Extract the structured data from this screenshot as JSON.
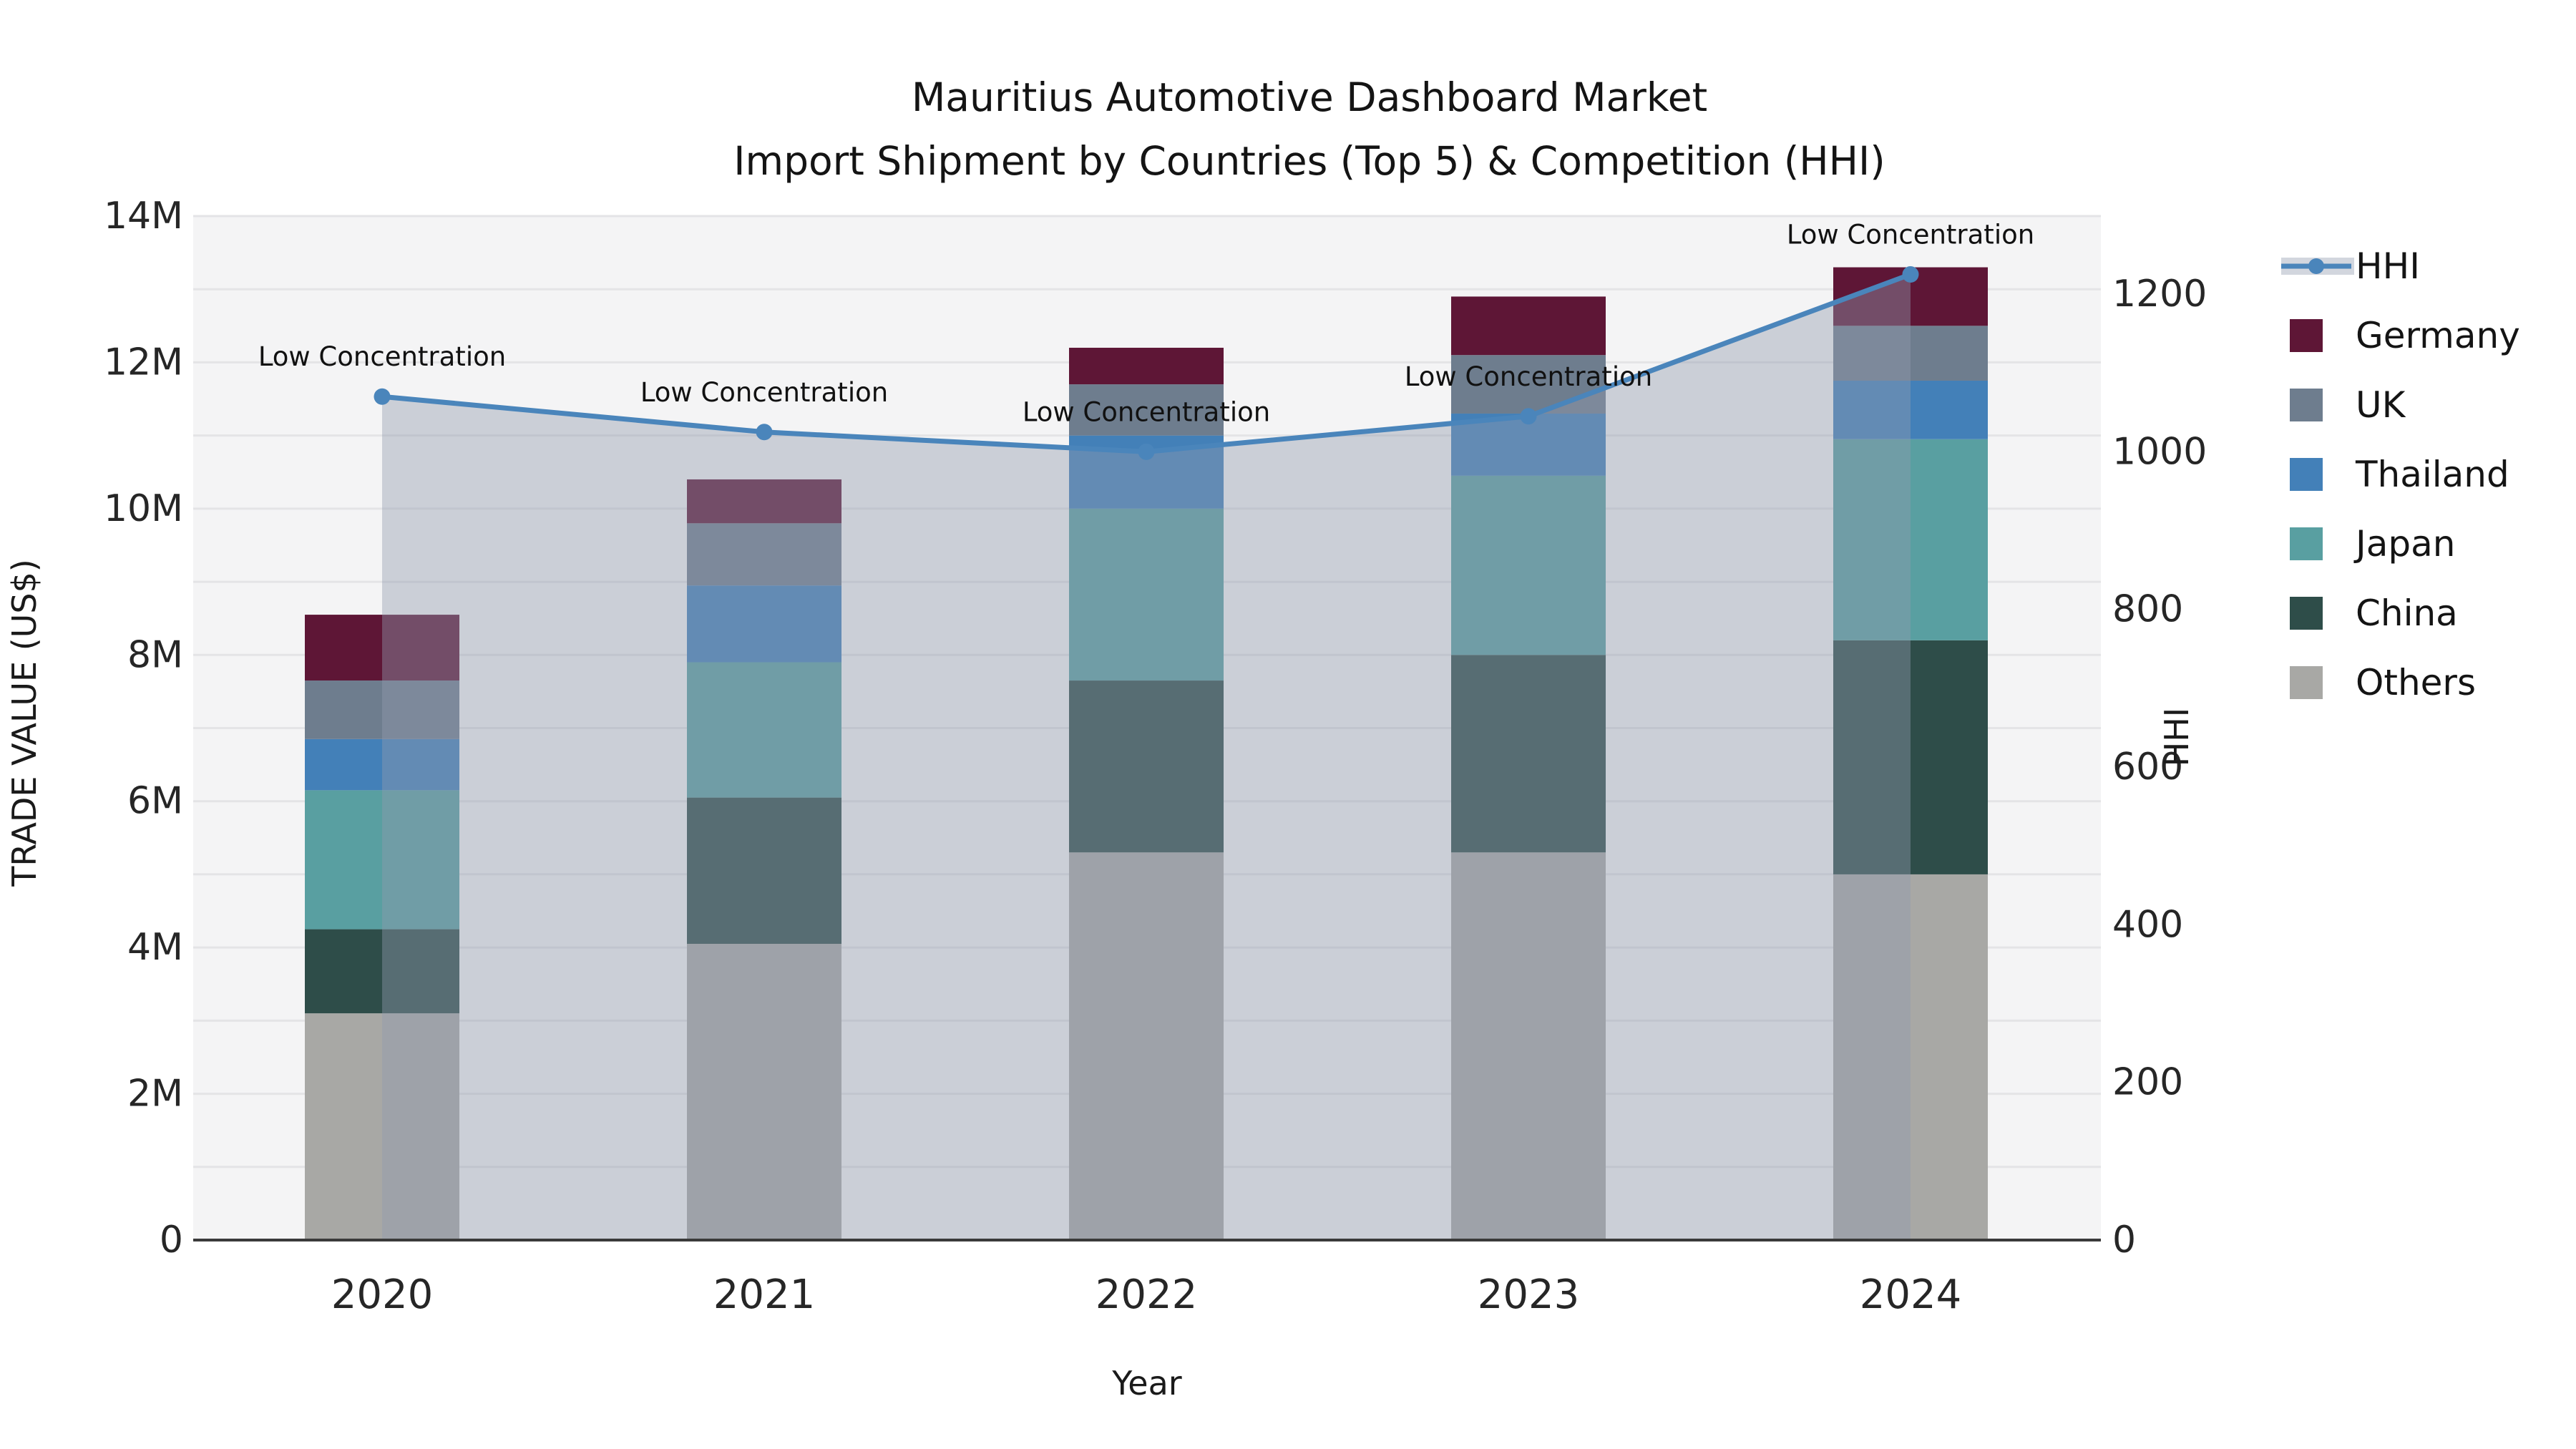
{
  "title": {
    "line1": "Mauritius Automotive Dashboard Market",
    "line2": "Import Shipment by Countries (Top 5) & Competition (HHI)"
  },
  "axes": {
    "x_label": "Year",
    "y_left_label": "TRADE VALUE (US$)",
    "y_right_label": "HHI",
    "y_left_ticks": [
      {
        "label": "0",
        "value": 0
      },
      {
        "label": "2M",
        "value": 2
      },
      {
        "label": "4M",
        "value": 4
      },
      {
        "label": "6M",
        "value": 6
      },
      {
        "label": "8M",
        "value": 8
      },
      {
        "label": "10M",
        "value": 10
      },
      {
        "label": "12M",
        "value": 12
      },
      {
        "label": "14M",
        "value": 14
      }
    ],
    "y_right_ticks": [
      {
        "label": "0",
        "value": 0
      },
      {
        "label": "200",
        "value": 200
      },
      {
        "label": "400",
        "value": 400
      },
      {
        "label": "600",
        "value": 600
      },
      {
        "label": "800",
        "value": 800
      },
      {
        "label": "1000",
        "value": 1000
      },
      {
        "label": "1200",
        "value": 1200
      }
    ]
  },
  "legend": {
    "items": [
      {
        "label": "HHI",
        "type": "line",
        "color": "#4a85bb"
      },
      {
        "label": "Germany",
        "type": "swatch",
        "color": "#5e1636"
      },
      {
        "label": "UK",
        "type": "swatch",
        "color": "#6e7d8e"
      },
      {
        "label": "Thailand",
        "type": "swatch",
        "color": "#4380b8"
      },
      {
        "label": "Japan",
        "type": "swatch",
        "color": "#599fa1"
      },
      {
        "label": "China",
        "type": "swatch",
        "color": "#2e4d49"
      },
      {
        "label": "Others",
        "type": "swatch",
        "color": "#a8a8a5"
      }
    ]
  },
  "palette": {
    "plot_bg": "#f4f4f5",
    "gridline": "#e4e4e6",
    "axis_line": "#3a3a3a",
    "hhi_line": "#4a85bb",
    "area_fill": "#919baf",
    "area_opacity": 0.42,
    "legend_band": "#d2d6de",
    "annotation_text": "#111111"
  },
  "chart_data": {
    "type": "combo_stacked_bar_line",
    "categories": [
      "2020",
      "2021",
      "2022",
      "2023",
      "2024"
    ],
    "bar_unit": "million US$",
    "stack_order_bottom_to_top": [
      "Others",
      "China",
      "Japan",
      "Thailand",
      "UK",
      "Germany"
    ],
    "series": [
      {
        "name": "Others",
        "color": "#a8a8a5",
        "values": [
          3.1,
          4.05,
          5.3,
          5.3,
          5.0
        ]
      },
      {
        "name": "China",
        "color": "#2e4d49",
        "values": [
          1.15,
          2.0,
          2.35,
          2.7,
          3.2
        ]
      },
      {
        "name": "Japan",
        "color": "#599fa1",
        "values": [
          1.9,
          1.85,
          2.35,
          2.45,
          2.75
        ]
      },
      {
        "name": "Thailand",
        "color": "#4380b8",
        "values": [
          0.7,
          1.05,
          1.0,
          0.85,
          0.8
        ]
      },
      {
        "name": "UK",
        "color": "#6e7d8e",
        "values": [
          0.8,
          0.85,
          0.7,
          0.8,
          0.75
        ]
      },
      {
        "name": "Germany",
        "color": "#5e1636",
        "values": [
          0.9,
          0.6,
          0.5,
          0.8,
          0.8
        ]
      }
    ],
    "bar_totals": [
      8.55,
      10.4,
      12.2,
      12.9,
      13.3
    ],
    "line_series": {
      "name": "HHI",
      "values": [
        1070,
        1025,
        1000,
        1045,
        1225
      ],
      "annotations": [
        "Low Concentration",
        "Low Concentration",
        "Low Concentration",
        "Low Concentration",
        "Low Concentration"
      ]
    },
    "left_axis": {
      "title": "TRADE VALUE (US$)",
      "min": 0,
      "max": 14,
      "unit": "M",
      "gridline_every": 1
    },
    "right_axis": {
      "title": "HHI",
      "min": 0,
      "max": 1200
    },
    "legend_position": "right",
    "grid": true
  }
}
